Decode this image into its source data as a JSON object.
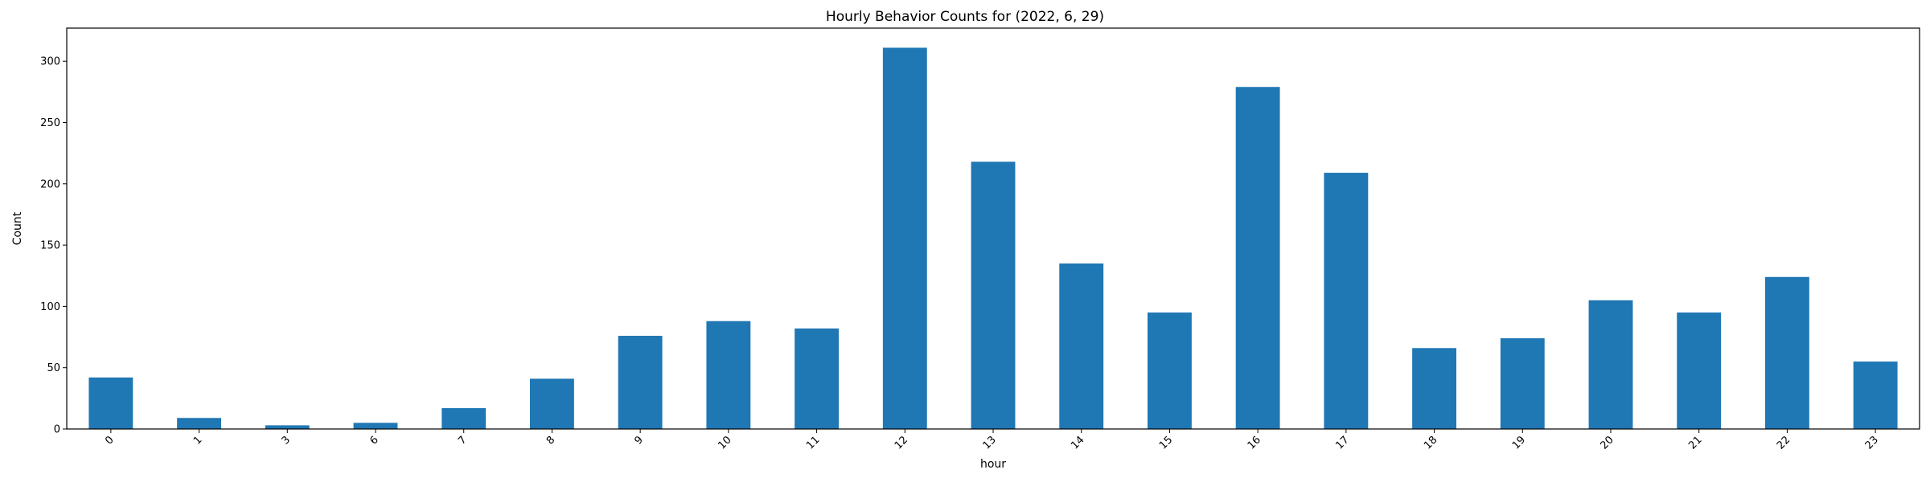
{
  "chart_data": {
    "type": "bar",
    "title": "Hourly Behavior Counts for (2022, 6, 29)",
    "xlabel": "hour",
    "ylabel": "Count",
    "categories": [
      "0",
      "1",
      "3",
      "6",
      "7",
      "8",
      "9",
      "10",
      "11",
      "12",
      "13",
      "14",
      "15",
      "16",
      "17",
      "18",
      "19",
      "20",
      "21",
      "22",
      "23"
    ],
    "values": [
      42,
      9,
      3,
      5,
      17,
      41,
      76,
      88,
      82,
      311,
      218,
      135,
      95,
      279,
      209,
      66,
      74,
      105,
      95,
      124,
      55
    ],
    "ylim": [
      0,
      327
    ],
    "yticks": [
      0,
      50,
      100,
      150,
      200,
      250,
      300
    ],
    "grid": false,
    "bar_color": "#1f77b4"
  }
}
